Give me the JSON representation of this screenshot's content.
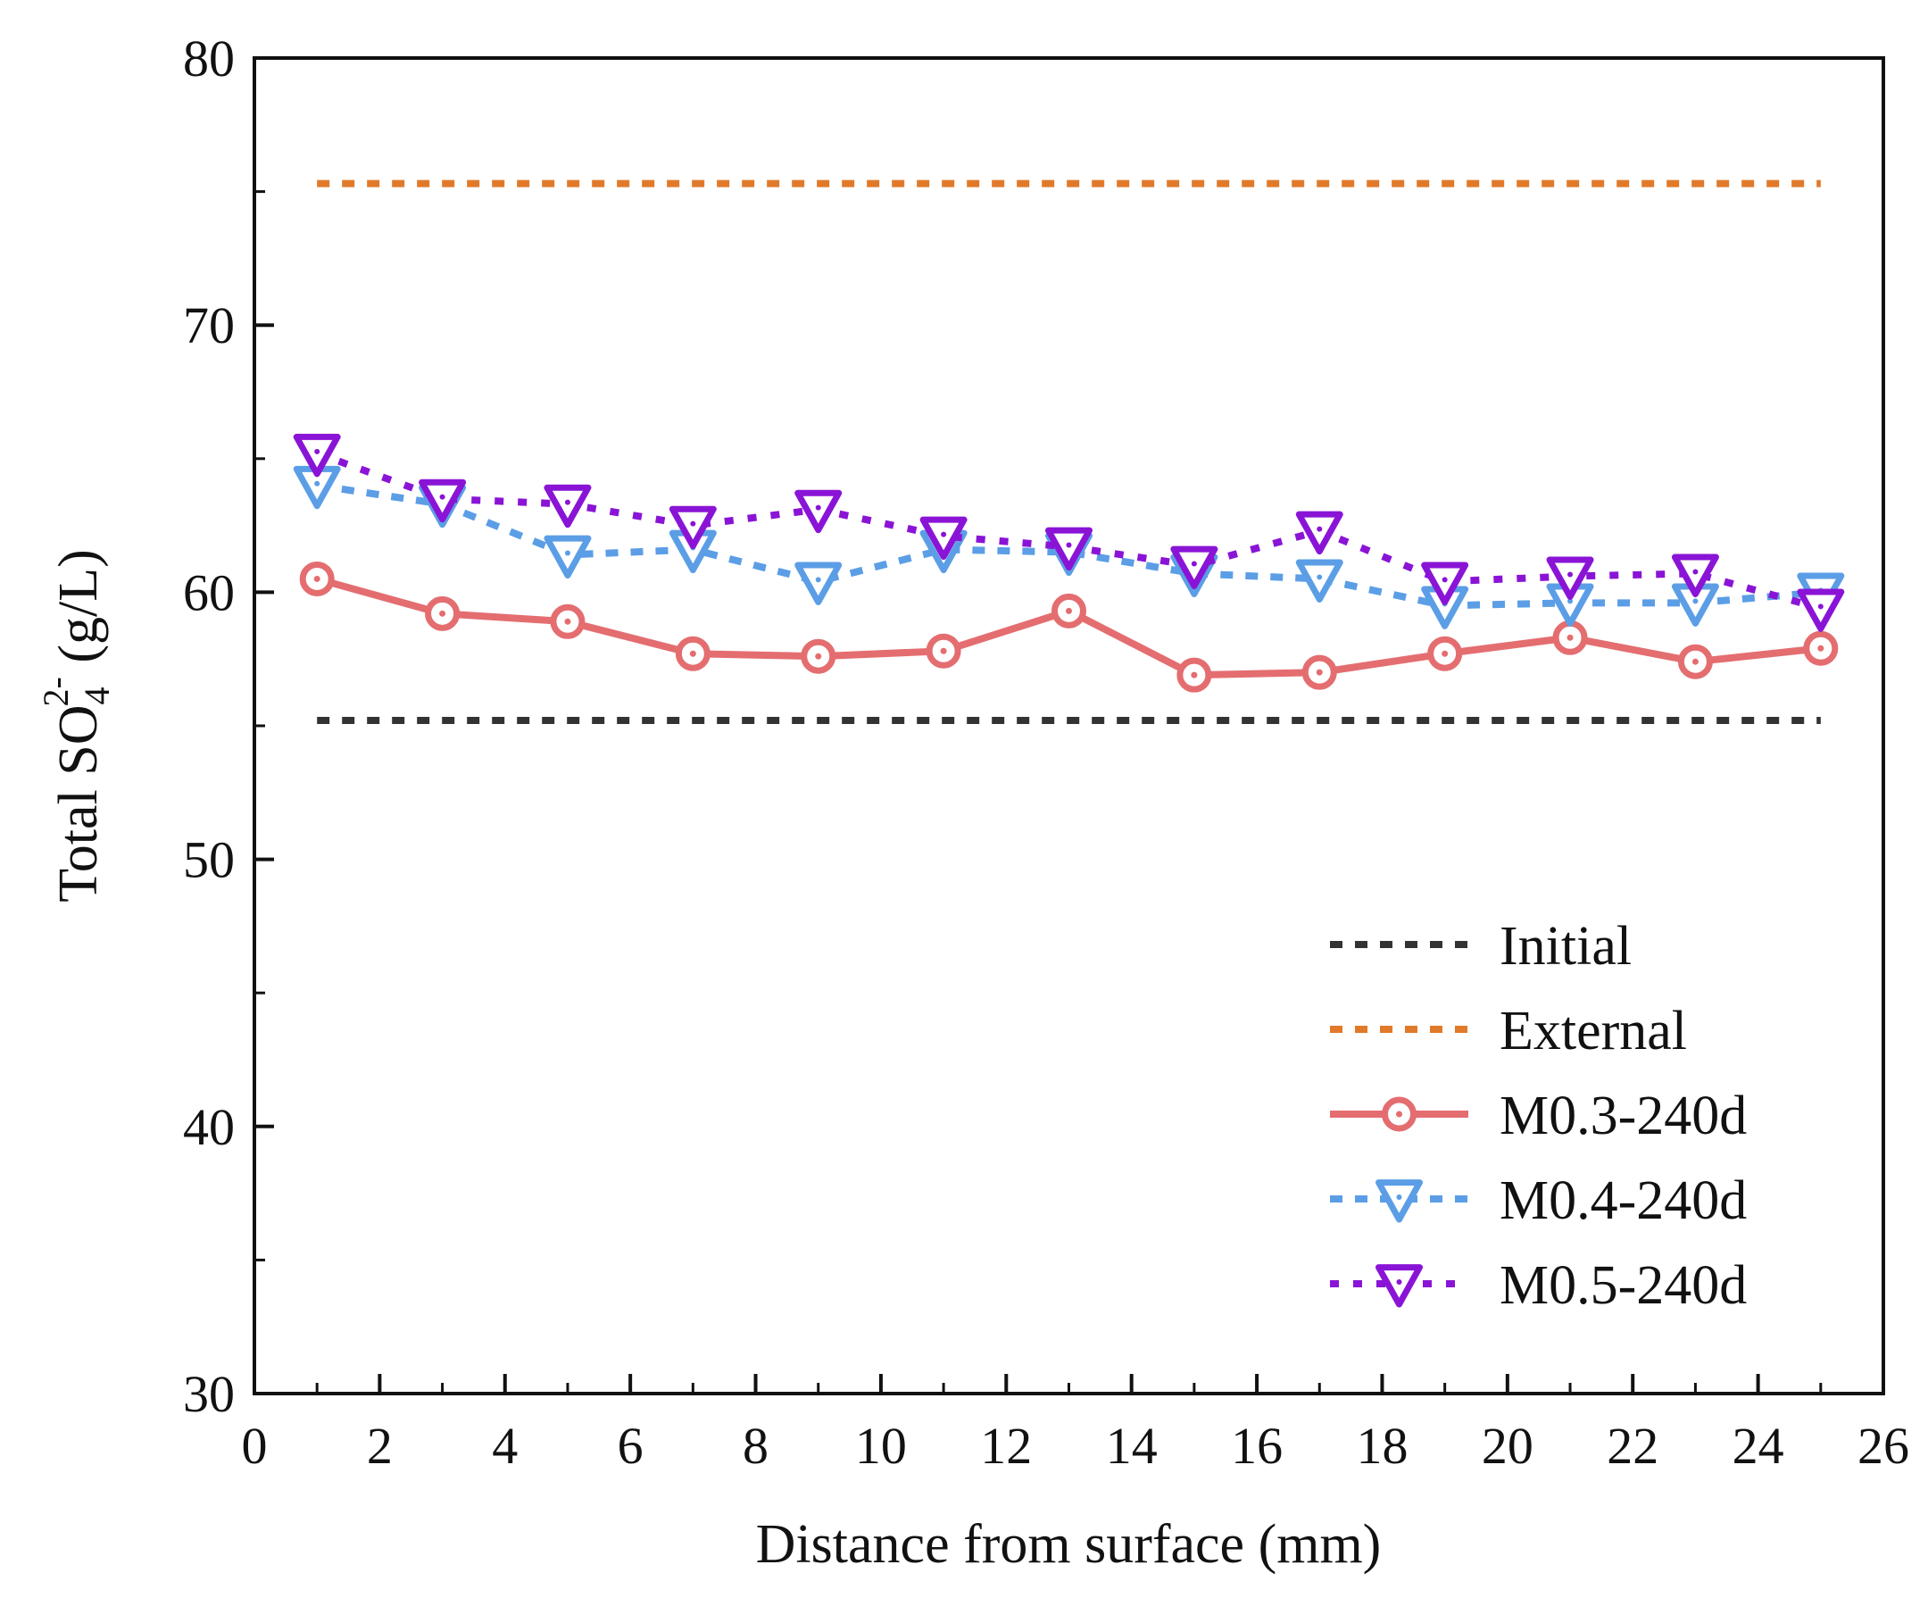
{
  "chart_data": {
    "type": "line",
    "title": "",
    "xlabel": "Distance from surface (mm)",
    "ylabel_main": "Total SO",
    "ylabel_sub": "4",
    "ylabel_sup": "2-",
    "ylabel_unit": " (g/L)",
    "xlim": [
      0,
      26
    ],
    "ylim": [
      30,
      80
    ],
    "x_ticks": [
      "0",
      "2",
      "4",
      "6",
      "8",
      "10",
      "12",
      "14",
      "16",
      "18",
      "20",
      "22",
      "24",
      "26"
    ],
    "y_ticks": [
      "30",
      "40",
      "50",
      "60",
      "70",
      "80"
    ],
    "x": [
      1,
      3,
      5,
      7,
      9,
      11,
      13,
      15,
      17,
      19,
      21,
      23,
      25
    ],
    "legend_position": "bottom-right",
    "series": [
      {
        "name": "Initial",
        "color": "#333333",
        "style": "dash",
        "marker": "none",
        "values": [
          55.2,
          55.2,
          55.2,
          55.2,
          55.2,
          55.2,
          55.2,
          55.2,
          55.2,
          55.2,
          55.2,
          55.2,
          55.2
        ]
      },
      {
        "name": "External",
        "color": "#e07a2a",
        "style": "dash",
        "marker": "none",
        "values": [
          75.3,
          75.3,
          75.3,
          75.3,
          75.3,
          75.3,
          75.3,
          75.3,
          75.3,
          75.3,
          75.3,
          75.3,
          75.3
        ]
      },
      {
        "name": "M0.3-240d",
        "color": "#e46d70",
        "style": "solid",
        "marker": "circle",
        "values": [
          60.5,
          59.2,
          58.9,
          57.7,
          57.6,
          57.8,
          59.3,
          56.9,
          57.0,
          57.7,
          58.3,
          57.4,
          57.9
        ]
      },
      {
        "name": "M0.4-240d",
        "color": "#5b9ee6",
        "style": "dash",
        "marker": "triangle-down",
        "values": [
          64.0,
          63.3,
          61.4,
          61.6,
          60.4,
          61.6,
          61.5,
          60.7,
          60.5,
          59.5,
          59.6,
          59.6,
          60.0
        ]
      },
      {
        "name": "M0.5-240d",
        "color": "#8a14d6",
        "style": "dot",
        "marker": "triangle-down",
        "values": [
          65.2,
          63.5,
          63.3,
          62.5,
          63.1,
          62.1,
          61.7,
          61.0,
          62.3,
          60.4,
          60.6,
          60.7,
          59.4
        ]
      }
    ]
  }
}
